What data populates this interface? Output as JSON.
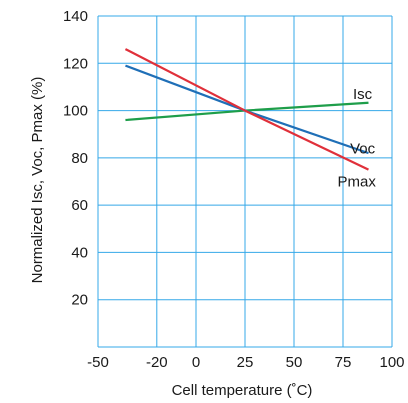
{
  "chart_data": {
    "type": "line",
    "title": "",
    "xlabel": "Cell temperature (˚C)",
    "ylabel": "Normalized Isc, Voc, Pmax (%)",
    "xlim": [
      -50,
      100
    ],
    "ylim": [
      0,
      140
    ],
    "x_ticks": [
      -50,
      -20,
      0,
      25,
      50,
      75,
      100
    ],
    "y_ticks": [
      20,
      40,
      60,
      80,
      100,
      120,
      140
    ],
    "grid": true,
    "legend": "none",
    "series": [
      {
        "name": "Isc",
        "color": "#1e9e4a",
        "points": [
          [
            -36,
            96
          ],
          [
            25,
            100
          ],
          [
            88,
            103.3
          ]
        ],
        "label_at": [
          85,
          107
        ]
      },
      {
        "name": "Voc",
        "color": "#1f6fb7",
        "points": [
          [
            -36,
            119
          ],
          [
            25,
            100
          ],
          [
            88,
            82
          ]
        ],
        "label_at": [
          85,
          84
        ]
      },
      {
        "name": "Pmax",
        "color": "#e0303a",
        "points": [
          [
            -36,
            126
          ],
          [
            25,
            100
          ],
          [
            88,
            75
          ]
        ],
        "label_at": [
          82,
          70
        ]
      }
    ]
  }
}
